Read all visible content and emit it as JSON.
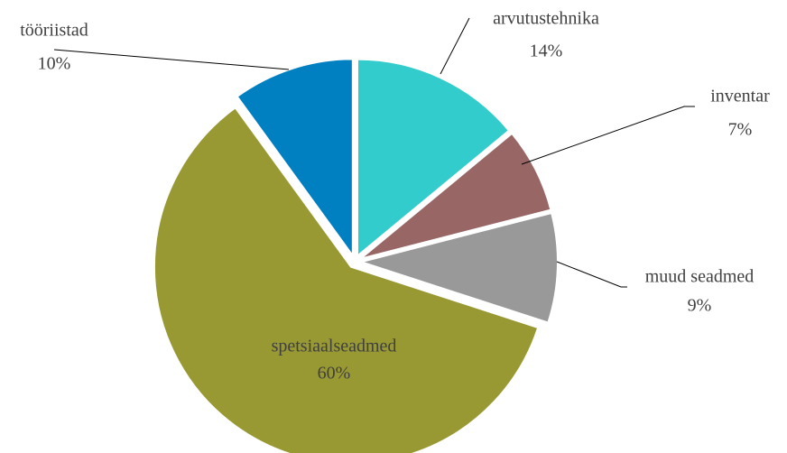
{
  "chart_data": {
    "type": "pie",
    "categories": [
      "arvutustehnika",
      "inventar",
      "muud seadmed",
      "spetsiaalseadmed",
      "tööriistad"
    ],
    "values": [
      14,
      7,
      9,
      60,
      10
    ],
    "value_labels": [
      "14%",
      "7%",
      "9%",
      "60%",
      "10%"
    ],
    "colors": [
      "#33CCCC",
      "#996666",
      "#999999",
      "#999933",
      "#0080C0"
    ]
  }
}
